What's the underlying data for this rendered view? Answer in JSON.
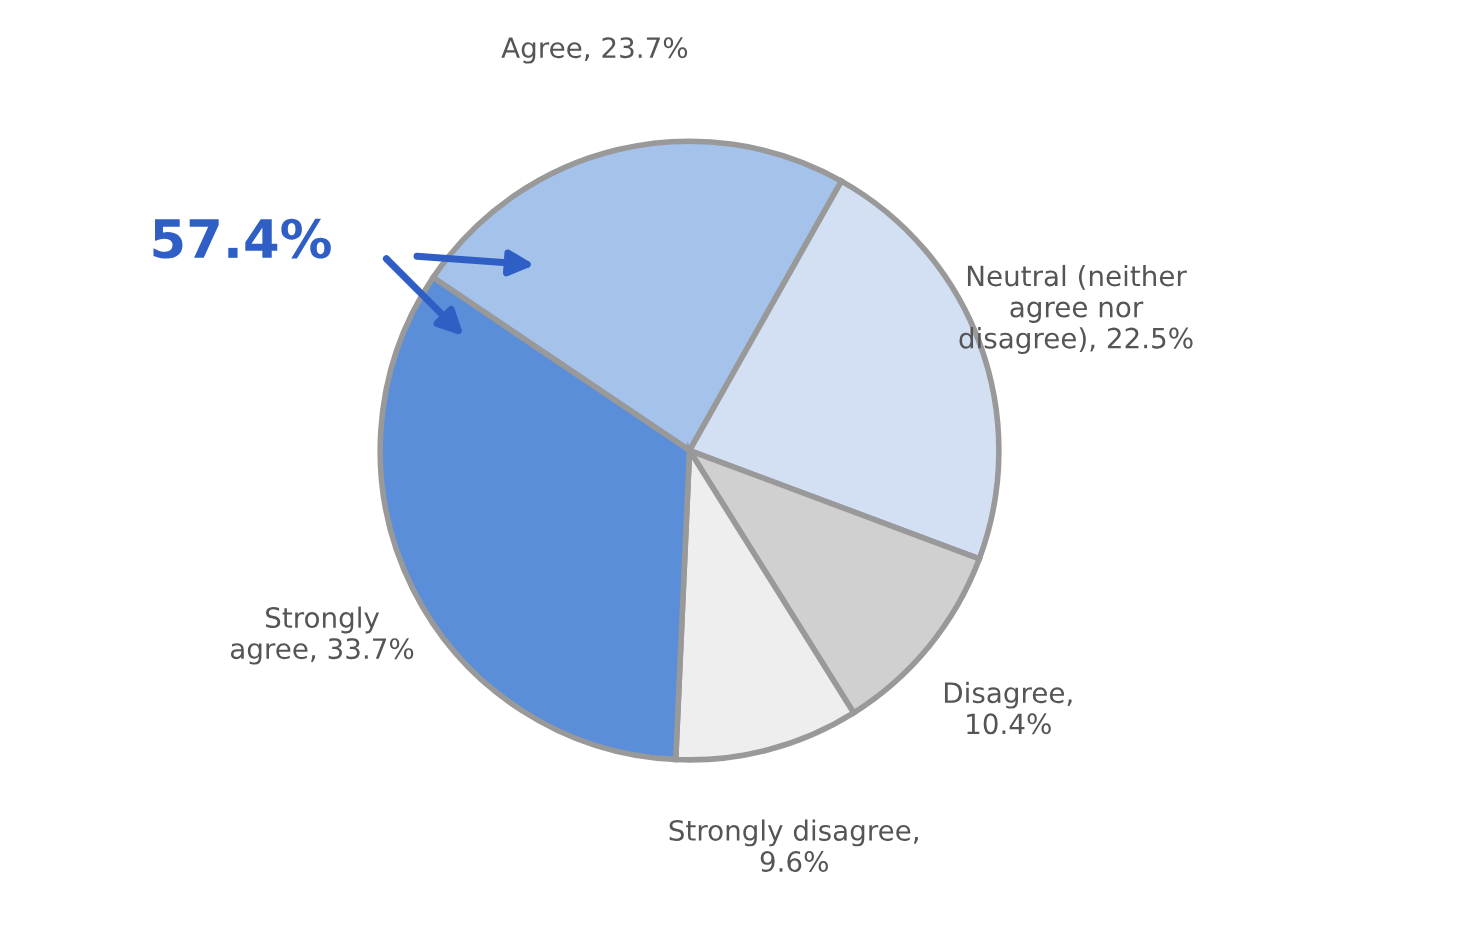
{
  "chart_data": {
    "type": "pie",
    "categories": [
      "Agree, 23.7%",
      "Neutral (neither\nagree nor\ndisagree), 22.5%",
      "Disagree,\n10.4%",
      "Strongly disagree,\n9.6%",
      "Strongly\nagree, 33.7%"
    ],
    "values": [
      23.7,
      22.5,
      10.4,
      9.6,
      33.7
    ],
    "colors": [
      "#a4c2ea",
      "#d3dff3",
      "#d0d0d0",
      "#eeeeee",
      "#5b8ed8"
    ],
    "annotations": [
      "57.4%"
    ],
    "legend": false
  }
}
